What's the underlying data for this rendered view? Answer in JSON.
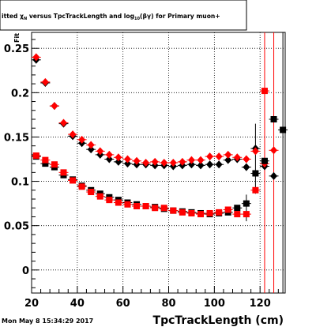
{
  "canvas": {
    "title_prefix": "itted",
    "timestamp": "Mon May  8 15:34:29 2017"
  },
  "chart_data": {
    "type": "scatter",
    "title": "itted χₙ versus TpcTrackLength and log₁₀(βγ) for Primary muon+",
    "title_main": "itted ",
    "title_chi": "χ",
    "title_chi_sub": "N",
    "title_mid": " versus TpcTrackLength and log",
    "title_log_sub": "10",
    "title_bg": "(βγ) for Primary muon+",
    "xlabel": "TpcTrackLength (cm)",
    "ylabel": "Fit",
    "xlim": [
      20,
      131
    ],
    "ylim": [
      -0.026,
      0.268
    ],
    "x_ticks": [
      20,
      40,
      60,
      80,
      100,
      120
    ],
    "y_ticks": [
      0,
      0.05,
      0.1,
      0.15,
      0.2,
      0.25
    ],
    "x_tick_labels": [
      "20",
      "40",
      "60",
      "80",
      "100",
      "120"
    ],
    "y_tick_labels": [
      "0",
      "0.05",
      "0.1",
      "0.15",
      "0.2",
      "0.25"
    ],
    "grid": true,
    "series": [
      {
        "color": "#000000",
        "marker": "diamond",
        "x": [
          22,
          26,
          30,
          34,
          38,
          42,
          46,
          50,
          54,
          58,
          62,
          66,
          70,
          74,
          78,
          82,
          86,
          90,
          94,
          98,
          102,
          106,
          110,
          114,
          118,
          122,
          126
        ],
        "y": [
          0.237,
          0.211,
          0.185,
          0.165,
          0.151,
          0.143,
          0.136,
          0.13,
          0.125,
          0.122,
          0.12,
          0.119,
          0.119,
          0.118,
          0.118,
          0.117,
          0.118,
          0.119,
          0.118,
          0.119,
          0.119,
          0.124,
          0.125,
          0.116,
          0.137,
          0.117,
          0.106
        ]
      },
      {
        "color": "#ff0000",
        "marker": "diamond",
        "x": [
          22,
          26,
          30,
          34,
          38,
          42,
          46,
          50,
          54,
          58,
          62,
          66,
          70,
          74,
          78,
          82,
          86,
          90,
          94,
          98,
          102,
          106,
          110,
          114,
          118,
          122,
          126
        ],
        "y": [
          0.24,
          0.212,
          0.185,
          0.166,
          0.153,
          0.147,
          0.141,
          0.134,
          0.13,
          0.127,
          0.125,
          0.123,
          0.121,
          0.122,
          0.121,
          0.121,
          0.122,
          0.124,
          0.124,
          0.128,
          0.128,
          0.13,
          0.127,
          0.125,
          0.134,
          0.12,
          0.135
        ]
      },
      {
        "color": "#000000",
        "marker": "square",
        "x": [
          22,
          26,
          30,
          34,
          38,
          42,
          46,
          50,
          54,
          58,
          62,
          66,
          70,
          74,
          78,
          82,
          86,
          90,
          94,
          98,
          102,
          106,
          110,
          114,
          118,
          122,
          126,
          130
        ],
        "y": [
          0.128,
          0.12,
          0.116,
          0.107,
          0.102,
          0.095,
          0.09,
          0.086,
          0.082,
          0.079,
          0.076,
          0.074,
          0.072,
          0.071,
          0.069,
          0.067,
          0.066,
          0.065,
          0.064,
          0.063,
          0.064,
          0.065,
          0.07,
          0.075,
          0.109,
          0.123,
          0.17,
          0.158
        ]
      },
      {
        "color": "#ff0000",
        "marker": "square",
        "x": [
          22,
          26,
          30,
          34,
          38,
          42,
          46,
          50,
          54,
          58,
          62,
          66,
          70,
          74,
          78,
          82,
          86,
          90,
          94,
          98,
          102,
          106,
          110,
          114,
          118,
          122
        ],
        "y": [
          0.129,
          0.124,
          0.119,
          0.11,
          0.101,
          0.094,
          0.088,
          0.083,
          0.079,
          0.076,
          0.074,
          0.072,
          0.072,
          0.07,
          0.07,
          0.067,
          0.065,
          0.064,
          0.063,
          0.064,
          0.065,
          0.068,
          0.063,
          0.063,
          0.09,
          0.202
        ]
      }
    ],
    "error_bars": [
      {
        "x": 118,
        "ylo": 0.086,
        "yhi": 0.165,
        "color": "#000000"
      },
      {
        "x": 122,
        "ylo": -0.026,
        "yhi": 0.268,
        "color": "#ff0000"
      },
      {
        "x": 126,
        "ylo": -0.026,
        "yhi": 0.268,
        "color": "#ff0000"
      },
      {
        "x": 130,
        "ylo": -0.026,
        "yhi": 0.268,
        "color": "#000000"
      },
      {
        "x": 114,
        "ylo": 0.055,
        "yhi": 0.085,
        "color": "#000000"
      }
    ]
  }
}
